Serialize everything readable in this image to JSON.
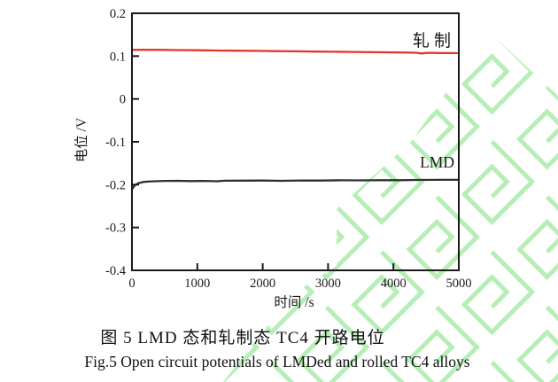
{
  "figure": {
    "caption_zh": "图 5  LMD 态和轧制态 TC4 开路电位",
    "caption_en": "Fig.5  Open circuit potentials of LMDed and rolled TC4 alloys"
  },
  "chart_data": {
    "type": "line",
    "title": "",
    "xlabel": "时间 /s",
    "ylabel": "电位 /V",
    "xlim": [
      0,
      5000
    ],
    "ylim": [
      -0.4,
      0.2
    ],
    "grid": false,
    "legend_position": "inline-labels-right",
    "x_ticks": [
      "0",
      "1000",
      "2000",
      "3000",
      "4000",
      "5000"
    ],
    "x_tick_values": [
      0,
      1000,
      2000,
      3000,
      4000,
      5000
    ],
    "y_ticks": [
      "0.2",
      "0.1",
      "0",
      "-0.1",
      "-0.2",
      "-0.3",
      "-0.4"
    ],
    "y_tick_values": [
      0.2,
      0.1,
      0,
      -0.1,
      -0.2,
      -0.3,
      -0.4
    ],
    "frame_color": "#1a1a1a",
    "watermark_color": "#b7eeb7",
    "series": [
      {
        "name": "轧制",
        "color": "#e4352c",
        "points": [
          [
            0,
            0.1145
          ],
          [
            150,
            0.115
          ],
          [
            400,
            0.1147
          ],
          [
            700,
            0.1142
          ],
          [
            1000,
            0.1137
          ],
          [
            1300,
            0.1132
          ],
          [
            1600,
            0.1127
          ],
          [
            1900,
            0.1122
          ],
          [
            2200,
            0.1117
          ],
          [
            2500,
            0.1112
          ],
          [
            2800,
            0.1107
          ],
          [
            3100,
            0.1102
          ],
          [
            3400,
            0.1097
          ],
          [
            3700,
            0.1092
          ],
          [
            4000,
            0.1088
          ],
          [
            4200,
            0.1084
          ],
          [
            4350,
            0.108
          ],
          [
            4430,
            0.1063
          ],
          [
            4520,
            0.1077
          ],
          [
            4700,
            0.1073
          ],
          [
            4850,
            0.1071
          ],
          [
            5000,
            0.107
          ]
        ]
      },
      {
        "name": "LMD",
        "color": "#2f2f2f",
        "points": [
          [
            0,
            -0.211
          ],
          [
            40,
            -0.202
          ],
          [
            100,
            -0.1965
          ],
          [
            180,
            -0.1935
          ],
          [
            300,
            -0.1922
          ],
          [
            500,
            -0.1913
          ],
          [
            700,
            -0.191
          ],
          [
            900,
            -0.1916
          ],
          [
            1100,
            -0.1912
          ],
          [
            1300,
            -0.1921
          ],
          [
            1420,
            -0.1908
          ],
          [
            1700,
            -0.1906
          ],
          [
            2000,
            -0.1904
          ],
          [
            2300,
            -0.191
          ],
          [
            2600,
            -0.1902
          ],
          [
            2900,
            -0.1905
          ],
          [
            3200,
            -0.1898
          ],
          [
            3500,
            -0.1901
          ],
          [
            3800,
            -0.1895
          ],
          [
            4100,
            -0.1896
          ],
          [
            4400,
            -0.189
          ],
          [
            4700,
            -0.1888
          ],
          [
            5000,
            -0.1887
          ]
        ]
      }
    ]
  }
}
